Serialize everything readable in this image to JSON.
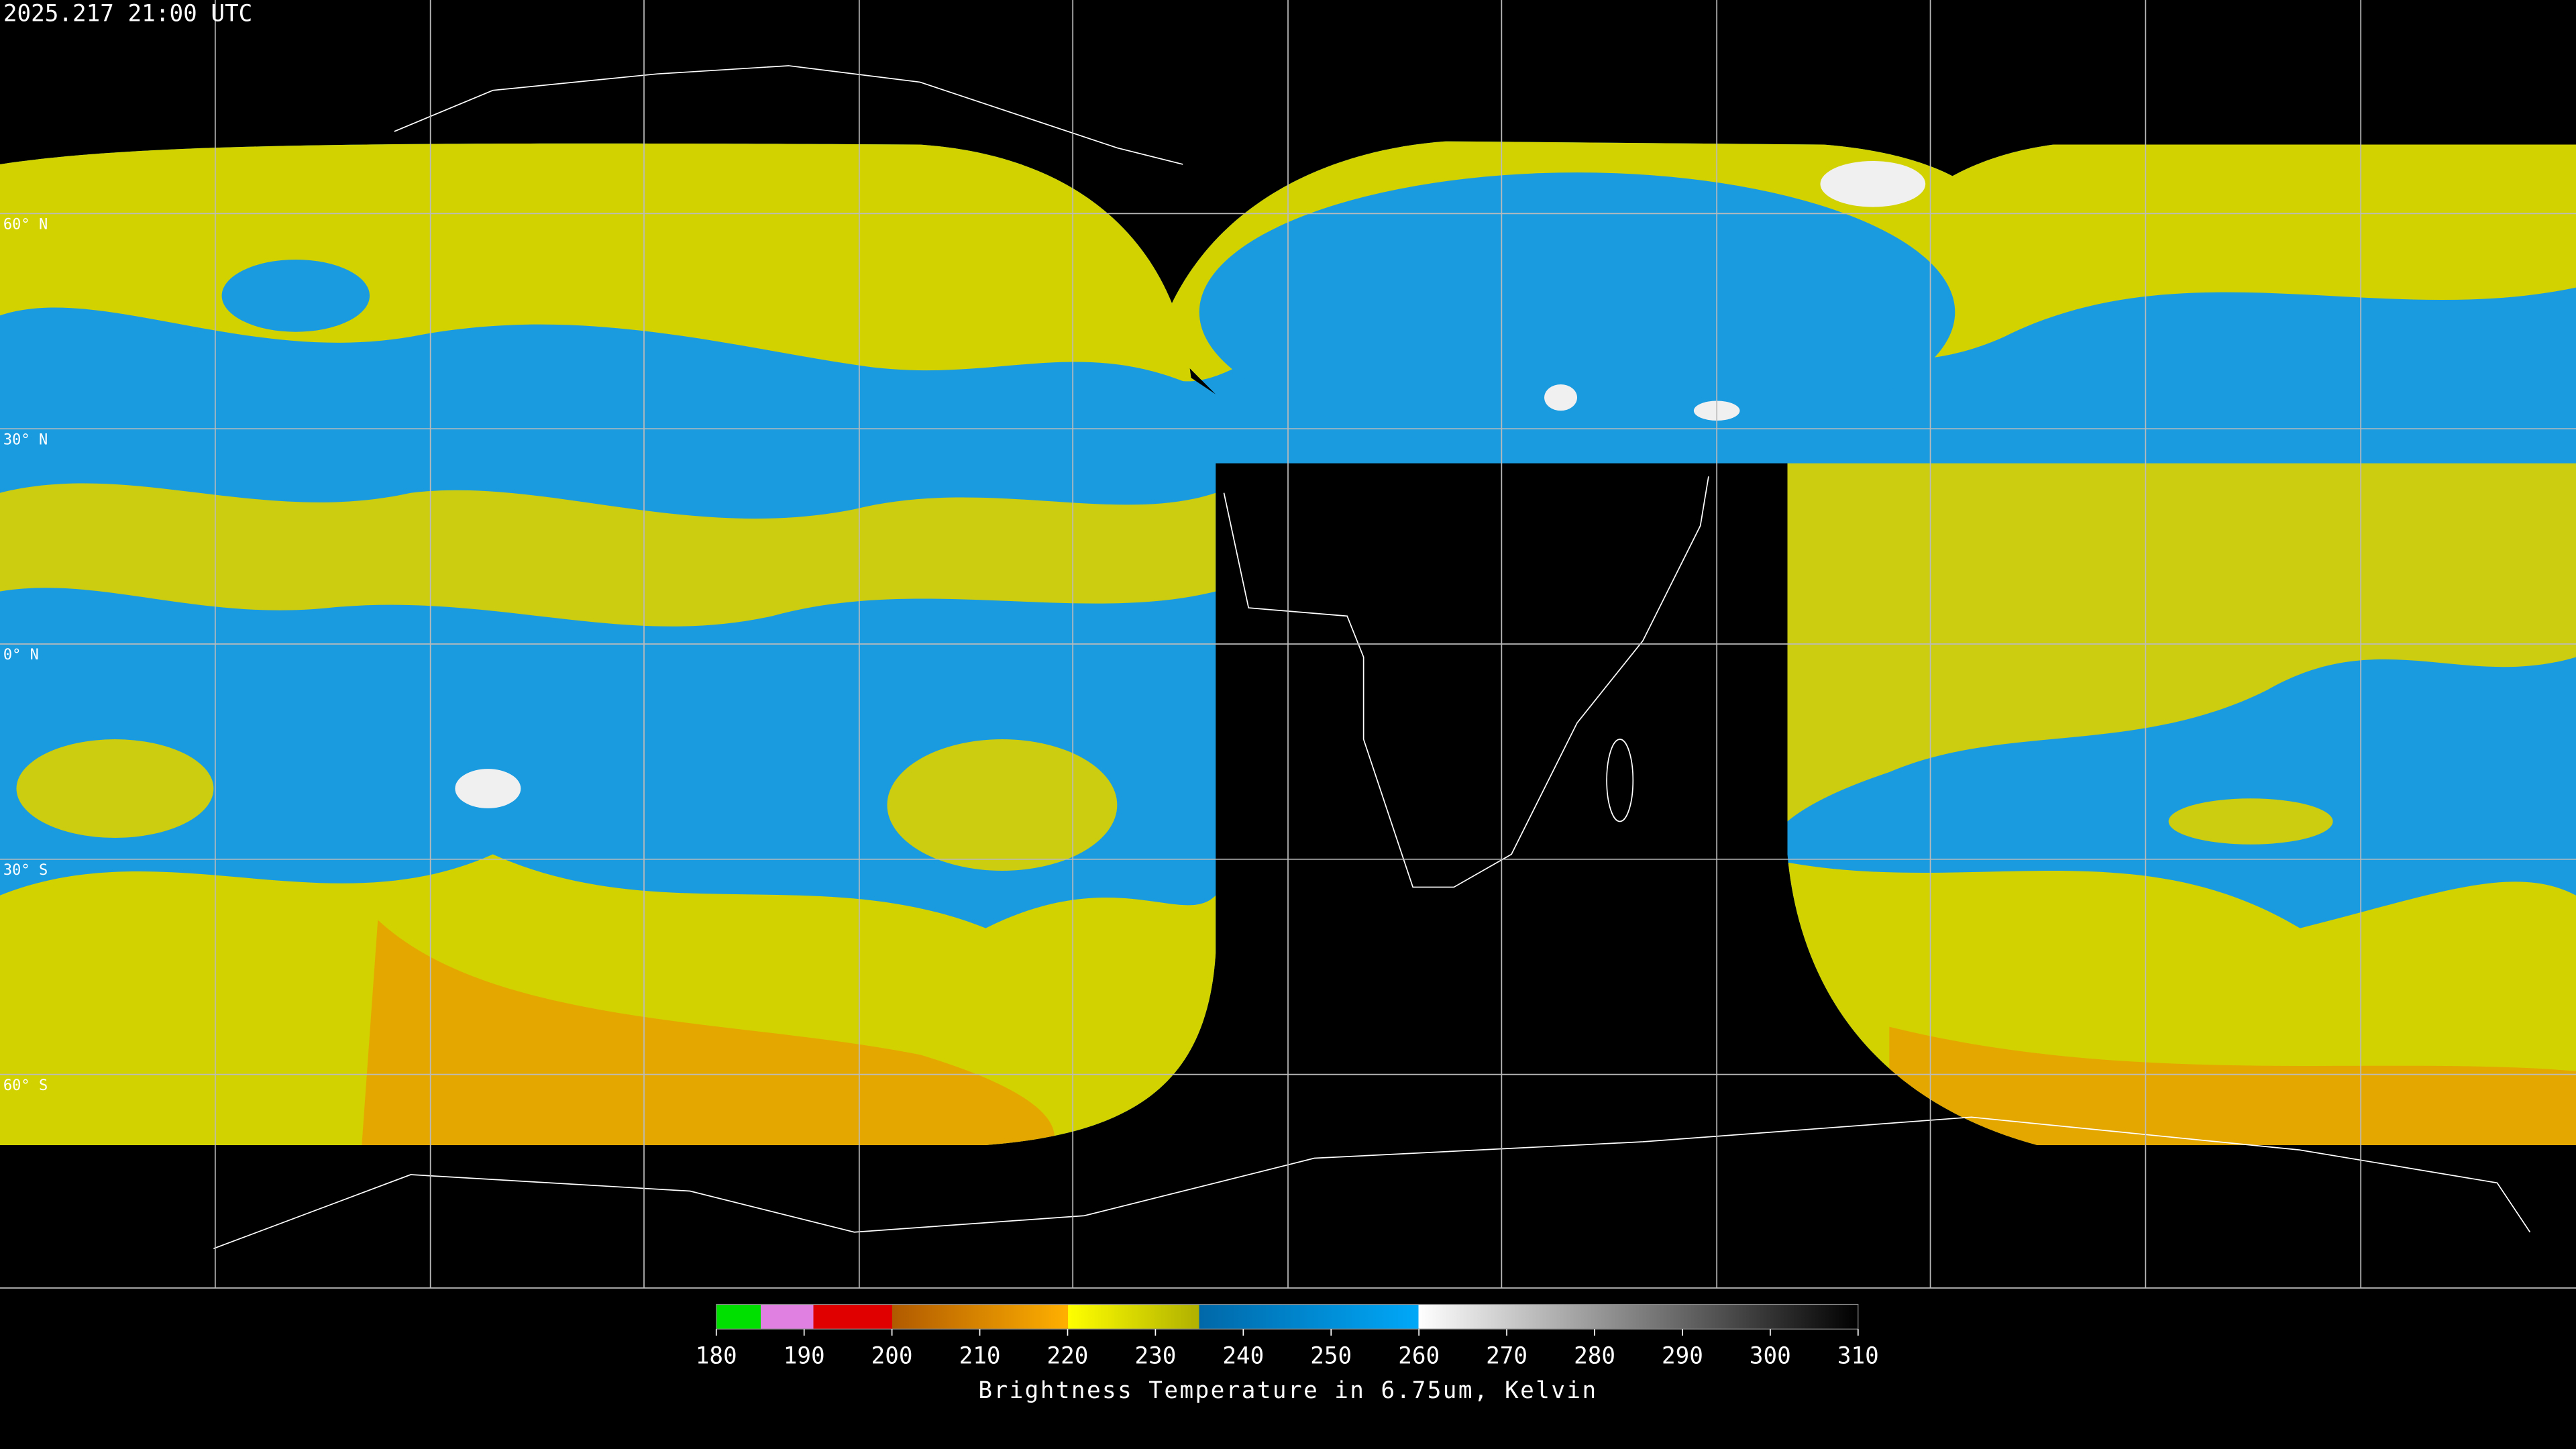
{
  "header": {
    "timestamp": "2025.217 21:00 UTC"
  },
  "map": {
    "lat_labels": [
      "60° N",
      "30° N",
      "0° N",
      "30° S",
      "60° S"
    ]
  },
  "colorbar": {
    "title": "Brightness Temperature in 6.75um, Kelvin",
    "range": [
      180,
      310
    ],
    "ticks": [
      180,
      190,
      200,
      210,
      220,
      230,
      240,
      250,
      260,
      270,
      280,
      290,
      300,
      310
    ]
  }
}
